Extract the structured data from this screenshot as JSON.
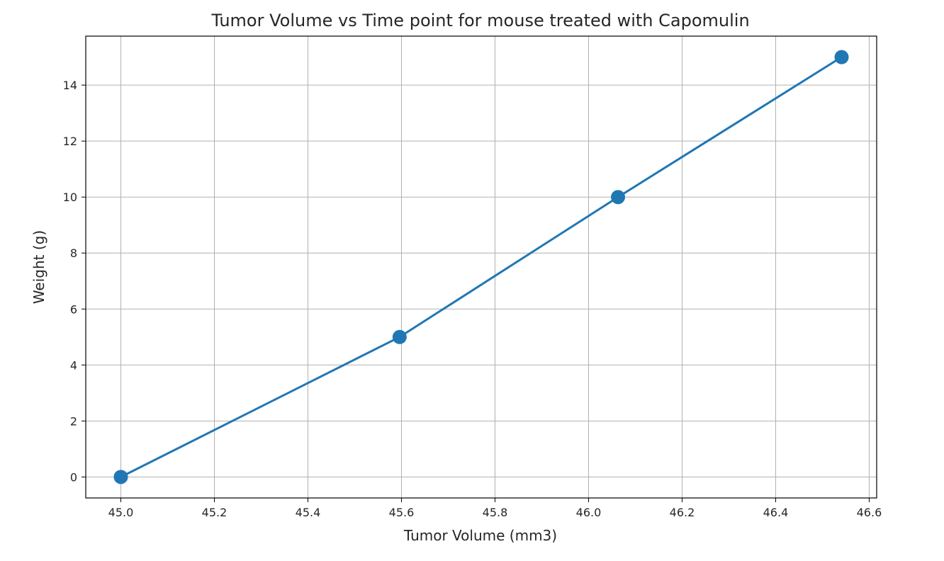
{
  "chart_data": {
    "type": "line",
    "title": "Tumor Volume vs Time point for mouse treated with Capomulin",
    "xlabel": "Tumor Volume (mm3)",
    "ylabel": "Weight (g)",
    "xlim": [
      44.925,
      46.616
    ],
    "ylim": [
      -0.75,
      15.75
    ],
    "xticks": [
      45.0,
      45.2,
      45.4,
      45.6,
      45.8,
      46.0,
      46.2,
      46.4,
      46.6
    ],
    "xtick_labels": [
      "45.0",
      "45.2",
      "45.4",
      "45.6",
      "45.8",
      "46.0",
      "46.2",
      "46.4",
      "46.6"
    ],
    "yticks": [
      0,
      2,
      4,
      6,
      8,
      10,
      12,
      14
    ],
    "ytick_labels": [
      "0",
      "2",
      "4",
      "6",
      "8",
      "10",
      "12",
      "14"
    ],
    "grid": true,
    "series": [
      {
        "color": "#1f77b4",
        "marker": "circle",
        "x": [
          45.0,
          45.596,
          46.063,
          46.541
        ],
        "y": [
          0,
          5,
          10,
          15
        ]
      }
    ]
  }
}
